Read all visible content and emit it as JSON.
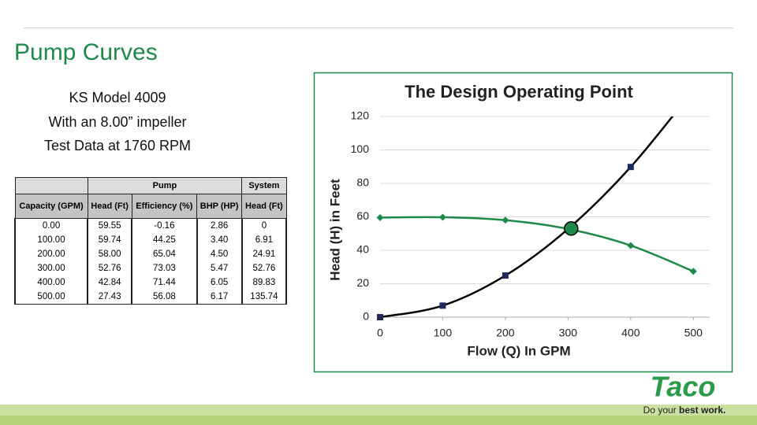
{
  "slide": {
    "title": "Pump Curves",
    "subtitle": [
      "KS Model 4009",
      "With an 8.00” impeller",
      "Test Data at 1760 RPM"
    ]
  },
  "table": {
    "group_header": [
      "",
      "Pump",
      "System"
    ],
    "header": [
      "Capacity (GPM)",
      "Head (Ft)",
      "Efficiency (%)",
      "BHP (HP)",
      "Head (Ft)"
    ],
    "rows": [
      [
        "0.00",
        "59.55",
        "-0.16",
        "2.86",
        "0"
      ],
      [
        "100.00",
        "59.74",
        "44.25",
        "3.40",
        "6.91"
      ],
      [
        "200.00",
        "58.00",
        "65.04",
        "4.50",
        "24.91"
      ],
      [
        "300.00",
        "52.76",
        "73.03",
        "5.47",
        "52.76"
      ],
      [
        "400.00",
        "42.84",
        "71.44",
        "6.05",
        "89.83"
      ],
      [
        "500.00",
        "27.43",
        "56.08",
        "6.17",
        "135.74"
      ]
    ]
  },
  "chart_data": {
    "type": "line",
    "title": "The Design Operating Point",
    "x_label": "Flow (Q) In GPM",
    "y_label": "Head (H) in Feet",
    "x": [
      0,
      100,
      200,
      300,
      400,
      500
    ],
    "series": [
      {
        "name": "Pump",
        "color": "#1e8a4a",
        "marker": "diamond",
        "values": [
          59.55,
          59.74,
          58.0,
          52.76,
          42.84,
          27.43
        ]
      },
      {
        "name": "System",
        "color": "#000000",
        "marker_color": "#1f2a5a",
        "marker": "square",
        "values": [
          0,
          6.91,
          24.91,
          52.76,
          89.83,
          135.74
        ]
      }
    ],
    "operating_point": {
      "x": 305,
      "y": 53,
      "color": "#1e8a4a"
    },
    "xlim": [
      0,
      550
    ],
    "xticks": [
      0,
      100,
      200,
      300,
      400,
      500
    ],
    "ylim": [
      0,
      120
    ],
    "yticks": [
      0,
      20,
      40,
      60,
      80,
      100,
      120
    ],
    "grid": true
  },
  "logo": {
    "brand": "Taco",
    "tagline_start": "Do your ",
    "tagline_bold": "best work."
  }
}
